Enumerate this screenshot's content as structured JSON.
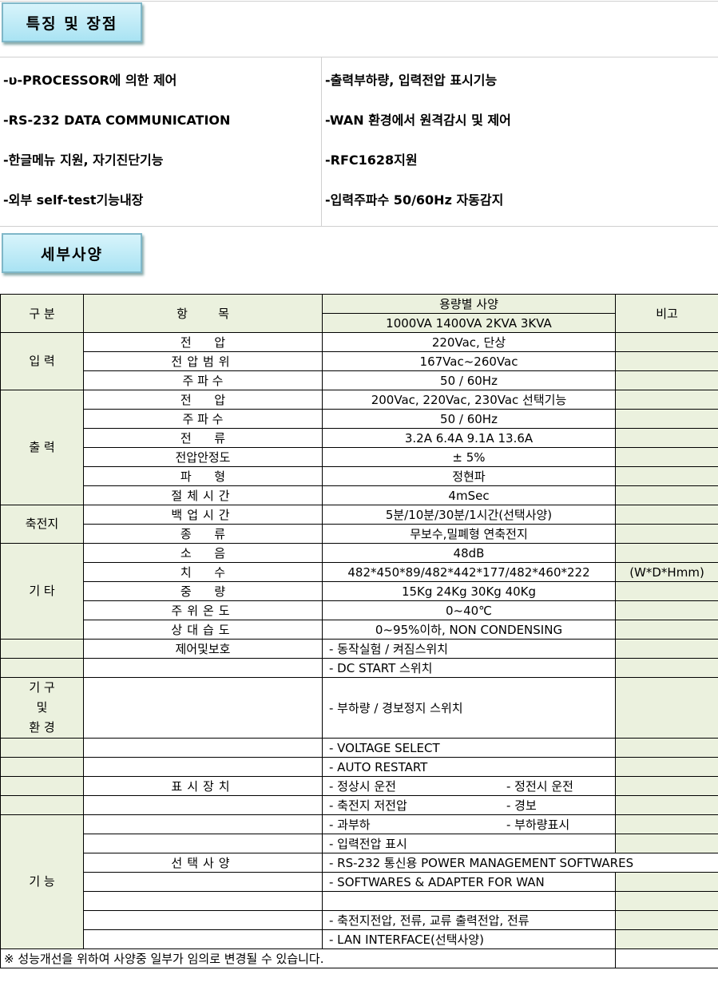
{
  "features": {
    "title": "특징 및 장점",
    "left": [
      "-υ-PROCESSOR에 의한 제어",
      "-RS-232 DATA COMMUNICATION",
      "-한글메뉴 지원, 자기진단기능",
      "-외부 self-test기능내장"
    ],
    "right": [
      "-출력부하량, 입력전압 표시기능",
      "-WAN 환경에서 원격감시 및 제어",
      "-RFC1628지원",
      "-입력주파수 50/60Hz 자동감지"
    ]
  },
  "specs": {
    "title": "세부사양",
    "header": {
      "category": "구  분",
      "item": "항        목",
      "spec": "용량별 사양",
      "models": "1000VA  1400VA  2KVA  3KVA",
      "remark": "비고"
    },
    "groups": {
      "input": "입 력",
      "output": "출 력",
      "battery": "축전지",
      "etc": "기 타",
      "mech1": "기 구",
      "mech2": "및",
      "mech3": "환 경",
      "func": "기 능"
    },
    "rows": [
      {
        "item": "전      압",
        "spec": "220Vac, 단상"
      },
      {
        "item": "전압범위",
        "spec": "167Vac~260Vac"
      },
      {
        "item": "주 파 수",
        "spec": "50 / 60Hz"
      },
      {
        "item": "전      압",
        "spec": "200Vac, 220Vac, 230Vac 선택기능"
      },
      {
        "item": "주 파 수",
        "spec": "50 / 60Hz"
      },
      {
        "item": "전      류",
        "spec": "3.2A   6.4A   9.1A   13.6A"
      },
      {
        "item": "전압안정도",
        "spec": "± 5%"
      },
      {
        "item": "파      형",
        "spec": "정현파"
      },
      {
        "item": "절체시간",
        "spec": "4mSec"
      },
      {
        "item": "백업시간",
        "spec": "5분/10분/30분/1시간(선택사양)"
      },
      {
        "item": "종      류",
        "spec": "무보수,밀폐형 연축전지"
      },
      {
        "item": "소      음",
        "spec": "48dB"
      },
      {
        "item": "치      수",
        "spec": "482*450*89/482*442*177/482*460*222",
        "remark": "(W*D*Hmm)"
      },
      {
        "item": "중      량",
        "spec": "15Kg 24Kg 30Kg 40Kg"
      },
      {
        "item": "주위온도",
        "spec": "0~40℃"
      },
      {
        "item": "상대습도",
        "spec": "0~95%이하, NON CONDENSING"
      },
      {
        "item": "제어및보호",
        "spec": "- 동작실험 / 켜짐스위치"
      },
      {
        "item": "",
        "spec": "- DC START 스위치"
      },
      {
        "item": "",
        "spec": "- 부하량 / 경보정지 스위치"
      },
      {
        "item": "",
        "spec": "- VOLTAGE SELECT"
      },
      {
        "item": "",
        "spec": "- AUTO RESTART"
      },
      {
        "item": "표시장치",
        "spec": "- 정상시 운전",
        "spec2": "- 정전시 운전"
      },
      {
        "item": "",
        "spec": "- 축전지 저전압",
        "spec2": "- 경보"
      },
      {
        "item": "",
        "spec": "- 과부하",
        "spec2": "- 부하량표시"
      },
      {
        "item": "",
        "spec": "- 입력전압 표시"
      },
      {
        "item": "선택사양",
        "spec": "- RS-232 통신용 POWER MANAGEMENT SOFTWARES"
      },
      {
        "item": "",
        "spec": "- SOFTWARES & ADAPTER FOR WAN"
      },
      {
        "item": "",
        "spec": ""
      },
      {
        "item": "",
        "spec": "- 축전지전압, 전류, 교류 출력전압, 전류"
      },
      {
        "item": "",
        "spec": "- LAN INTERFACE(선택사양)"
      }
    ],
    "footnote": "※ 성능개선을 위하여 사양중 일부가 임의로 변경될 수 있습니다."
  }
}
